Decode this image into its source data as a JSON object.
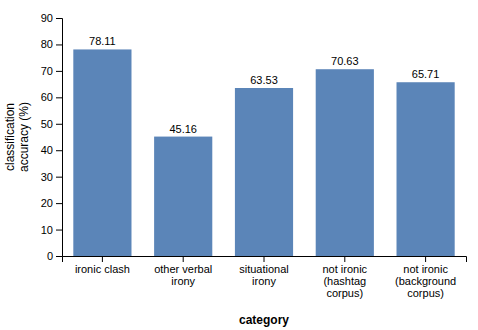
{
  "chart_data": {
    "type": "bar",
    "categories": [
      "ironic clash",
      "other verbal\nirony",
      "situational\nirony",
      "not ironic\n(hashtag\ncorpus)",
      "not ironic\n(background\ncorpus)"
    ],
    "values": [
      78.11,
      45.16,
      63.53,
      70.63,
      65.71
    ],
    "color": "#5b85b8",
    "xlabel": "category",
    "ylabel": "classification\naccuracy (%)",
    "ylim": [
      0,
      90
    ],
    "yticks": [
      0,
      10,
      20,
      30,
      40,
      50,
      60,
      70,
      80,
      90
    ],
    "grid": false,
    "data_labels": true
  }
}
